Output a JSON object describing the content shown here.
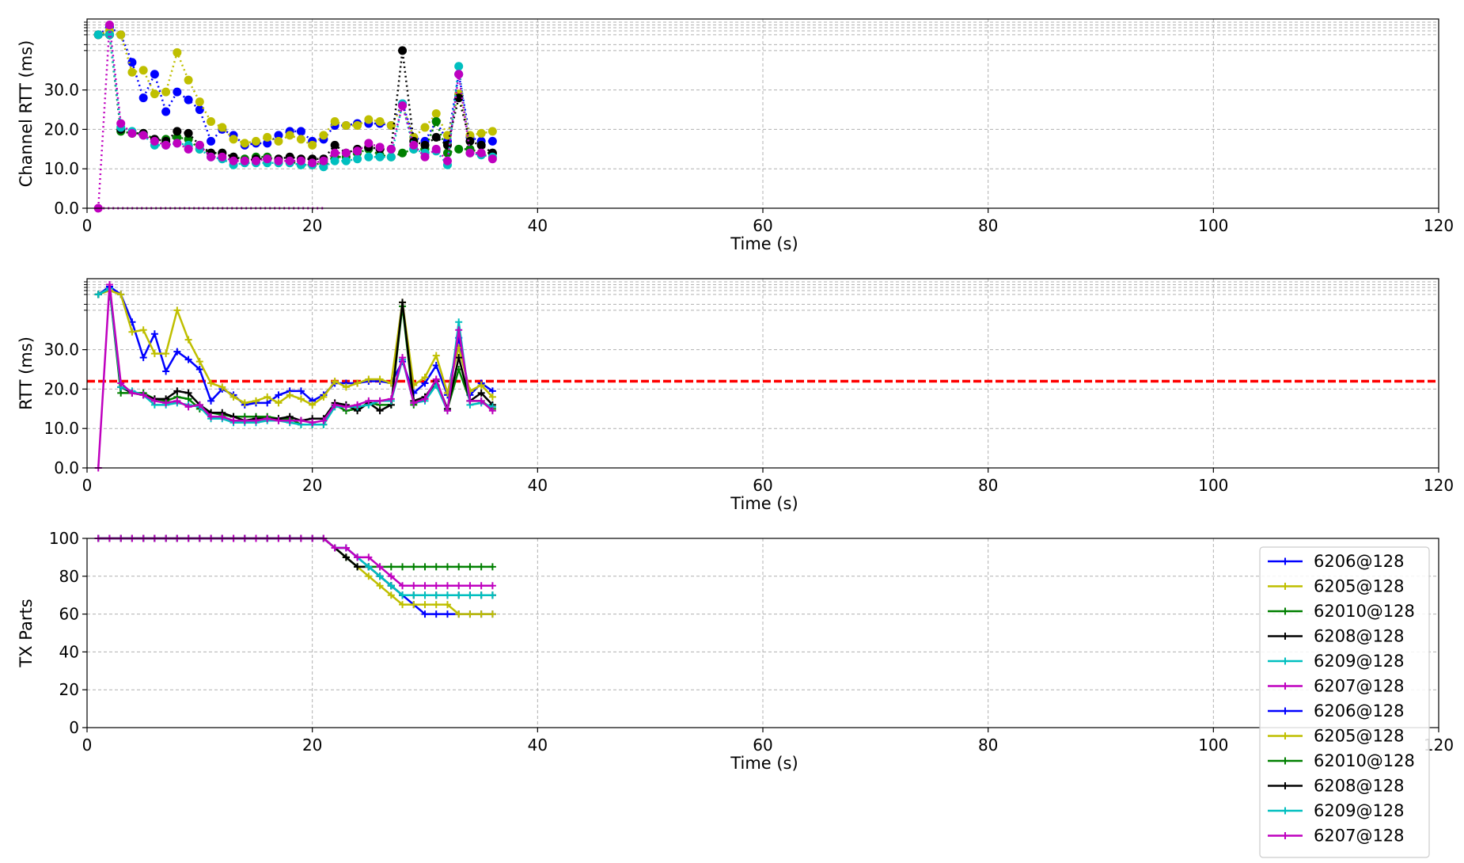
{
  "charts": [
    {
      "id": "channel_rtt",
      "xlabel": "Time (s)",
      "ylabel": "Channel RTT (ms)",
      "xlim": [
        0,
        120
      ],
      "ylim": [
        0,
        48
      ],
      "xticks": [
        "0",
        "20",
        "40",
        "60",
        "80",
        "100",
        "120"
      ],
      "yticks": [
        "0.0",
        "10.0",
        "20.0",
        "30.0"
      ],
      "ytick_values": [
        0,
        10,
        20,
        30
      ],
      "minor_y": [
        40,
        41.5,
        44,
        45,
        45.8,
        46.5,
        47.2
      ],
      "grid": true,
      "line_style": "dotted",
      "marker": "circle"
    },
    {
      "id": "rtt",
      "xlabel": "Time (s)",
      "ylabel": "RTT (ms)",
      "xlim": [
        0,
        120
      ],
      "ylim": [
        0,
        48
      ],
      "xticks": [
        "0",
        "20",
        "40",
        "60",
        "80",
        "100",
        "120"
      ],
      "yticks": [
        "0.0",
        "10.0",
        "20.0",
        "30.0"
      ],
      "ytick_values": [
        0,
        10,
        20,
        30
      ],
      "minor_y": [
        40,
        41.5,
        44,
        45,
        45.8,
        46.5,
        47.2
      ],
      "grid": true,
      "line_style": "solid",
      "marker": "plus",
      "threshold": {
        "y": 22,
        "color": "#ff0000"
      }
    },
    {
      "id": "tx_parts",
      "xlabel": "Time (s)",
      "ylabel": "TX Parts",
      "xlim": [
        0,
        120
      ],
      "ylim": [
        0,
        100
      ],
      "xticks": [
        "0",
        "20",
        "40",
        "60",
        "80",
        "100",
        "120"
      ],
      "yticks": [
        "0",
        "20",
        "40",
        "60",
        "80",
        "100"
      ],
      "ytick_values": [
        0,
        20,
        40,
        60,
        80,
        100
      ],
      "grid": true,
      "line_style": "solid",
      "marker": "plus"
    }
  ],
  "legend": {
    "placement": "right",
    "entries": [
      "6206@128",
      "6205@128",
      "62010@128",
      "6208@128",
      "6209@128",
      "6207@128",
      "6206@128",
      "6205@128",
      "62010@128",
      "6208@128",
      "6209@128",
      "6207@128"
    ],
    "colors": [
      "#0000ff",
      "#bfbf00",
      "#008000",
      "#000000",
      "#00bfbf",
      "#bf00bf",
      "#0000ff",
      "#bfbf00",
      "#008000",
      "#000000",
      "#00bfbf",
      "#bf00bf"
    ]
  },
  "chart_data": [
    {
      "type": "line",
      "xlabel": "Time (s)",
      "ylabel": "Channel RTT (ms)",
      "x": [
        1,
        2,
        3,
        4,
        5,
        6,
        7,
        8,
        9,
        10,
        11,
        12,
        13,
        14,
        15,
        16,
        17,
        18,
        19,
        20,
        21,
        22,
        23,
        24,
        25,
        26,
        27,
        28,
        29,
        30,
        31,
        32,
        33,
        34,
        35,
        36
      ],
      "series": [
        {
          "name": "6206@128",
          "color": "#0000ff",
          "values": [
            44,
            46,
            44,
            37,
            28,
            34,
            24.5,
            29.5,
            27.5,
            25,
            17,
            20,
            18.5,
            16,
            16.5,
            16.5,
            18.5,
            19.5,
            19.5,
            17,
            17.5,
            21,
            21,
            21.5,
            21.5,
            21.5,
            21,
            26.5,
            18,
            17,
            22,
            17,
            34,
            18,
            17,
            17
          ]
        },
        {
          "name": "6205@128",
          "color": "#bfbf00",
          "values": [
            44,
            45,
            44,
            34.5,
            35,
            29,
            29.5,
            39.5,
            32.5,
            27,
            22,
            20.5,
            17.5,
            16.5,
            17,
            18,
            17,
            18.5,
            17.5,
            16,
            18.5,
            22,
            21,
            21,
            22.5,
            22,
            21,
            26,
            18,
            20.5,
            24,
            18.5,
            29,
            18.5,
            19,
            19.5
          ]
        },
        {
          "name": "62010@128",
          "color": "#008000",
          "values": [
            44,
            44,
            19.5,
            19,
            19,
            17.5,
            17.5,
            18,
            17.5,
            15,
            14,
            14,
            13,
            12.5,
            13,
            13,
            12,
            12,
            11,
            11,
            11.5,
            13,
            13,
            14,
            15,
            13.5,
            13,
            14,
            15,
            15,
            22,
            14,
            15,
            15,
            14,
            14
          ]
        },
        {
          "name": "6208@128",
          "color": "#000000",
          "values": [
            44,
            44,
            20,
            19,
            19,
            17.5,
            17,
            19.5,
            19,
            16,
            14,
            14,
            13,
            12,
            12.5,
            12.5,
            12.5,
            13,
            12.5,
            12.5,
            12.5,
            16,
            14,
            15,
            15.5,
            15,
            15,
            40,
            17,
            16,
            18,
            16,
            28,
            17,
            16,
            14
          ]
        },
        {
          "name": "6209@128",
          "color": "#00bfbf",
          "values": [
            44,
            44,
            20.5,
            19.5,
            18.5,
            16,
            16,
            16.5,
            16,
            15,
            13,
            12.5,
            11,
            11.5,
            11.5,
            11.5,
            11.5,
            11.5,
            11,
            11,
            10.5,
            12,
            12,
            12.5,
            13,
            13,
            13,
            26.5,
            15,
            14,
            14.5,
            11,
            36,
            14,
            13.5,
            13
          ]
        },
        {
          "name": "6207@128",
          "color": "#bf00bf",
          "values": [
            0,
            46.5,
            21.5,
            19,
            18.5,
            17,
            16,
            16.5,
            15,
            16,
            13,
            13,
            12,
            12,
            12,
            12.5,
            12,
            12,
            12,
            11.5,
            12,
            14,
            14,
            14.5,
            16.5,
            15.5,
            15,
            26,
            16,
            13,
            15,
            12,
            34,
            14,
            14,
            12.5
          ]
        }
      ],
      "extra_series": [
        {
          "color": "#bf00bf",
          "style": "dotted",
          "x": [
            1,
            21
          ],
          "values": [
            0,
            0
          ]
        }
      ]
    },
    {
      "type": "line",
      "xlabel": "Time (s)",
      "ylabel": "RTT (ms)",
      "x": [
        1,
        2,
        3,
        4,
        5,
        6,
        7,
        8,
        9,
        10,
        11,
        12,
        13,
        14,
        15,
        16,
        17,
        18,
        19,
        20,
        21,
        22,
        23,
        24,
        25,
        26,
        27,
        28,
        29,
        30,
        31,
        32,
        33,
        34,
        35,
        36
      ],
      "series": [
        {
          "name": "6206@128",
          "color": "#0000ff",
          "values": [
            44,
            46,
            44,
            37,
            28,
            34,
            24.5,
            29.5,
            27.5,
            25,
            17,
            20,
            18.5,
            16,
            16.5,
            16.5,
            18.5,
            19.5,
            19.5,
            17,
            18.5,
            21.5,
            21.5,
            21.5,
            22,
            22,
            21.5,
            27,
            19,
            21.5,
            26,
            18.5,
            33,
            18.5,
            21.5,
            19.5
          ]
        },
        {
          "name": "6205@128",
          "color": "#bfbf00",
          "values": [
            44,
            45,
            44,
            34.5,
            35,
            29,
            29,
            40,
            32.5,
            27,
            21.5,
            20.5,
            18,
            16.5,
            17,
            18,
            16.5,
            18.5,
            17.5,
            16,
            18,
            22,
            20.5,
            21.5,
            22.5,
            22.5,
            21.5,
            42,
            21,
            23,
            28.5,
            19,
            30.5,
            19.5,
            21,
            18
          ]
        },
        {
          "name": "62010@128",
          "color": "#008000",
          "values": [
            44,
            45.5,
            19,
            19,
            19,
            17.5,
            17,
            18,
            17.5,
            15,
            14,
            13.5,
            13,
            13,
            13,
            13,
            12.5,
            12.5,
            11,
            11,
            11,
            16,
            14.5,
            15,
            16.5,
            16,
            16,
            41,
            16,
            18,
            21,
            15,
            25,
            17,
            17,
            15
          ]
        },
        {
          "name": "6208@128",
          "color": "#000000",
          "values": [
            44,
            45.5,
            20.5,
            19,
            18.5,
            17.5,
            17.5,
            19.5,
            19,
            16,
            14,
            14,
            13,
            12,
            12.5,
            12.5,
            12.5,
            13,
            12,
            12.5,
            12.5,
            16.5,
            16,
            14.5,
            16.5,
            14.5,
            16,
            42,
            17,
            18,
            22,
            15,
            28,
            17,
            19,
            16
          ]
        },
        {
          "name": "6209@128",
          "color": "#00bfbf",
          "values": [
            44,
            45.5,
            20.5,
            19.5,
            18.5,
            16,
            16,
            16.5,
            16,
            15.5,
            12.5,
            12.5,
            11.5,
            11.5,
            11.5,
            12,
            12,
            11.5,
            11,
            11,
            11,
            15.5,
            15.5,
            15.5,
            16,
            17,
            17,
            27.5,
            16.5,
            17,
            21,
            14.5,
            37,
            16,
            16.5,
            15.5
          ]
        },
        {
          "name": "6207@128",
          "color": "#bf00bf",
          "values": [
            0,
            46.5,
            21.5,
            19,
            18.5,
            17,
            16.5,
            17,
            15.5,
            16,
            13,
            13,
            12,
            12,
            12,
            12.5,
            12,
            12,
            12,
            11.5,
            12,
            16,
            15.5,
            16,
            17,
            17,
            17.5,
            28,
            16.5,
            17.5,
            22.5,
            14.5,
            35,
            17,
            17,
            14.5
          ]
        }
      ]
    },
    {
      "type": "line",
      "xlabel": "Time (s)",
      "ylabel": "TX Parts",
      "x": [
        1,
        2,
        3,
        4,
        5,
        6,
        7,
        8,
        9,
        10,
        11,
        12,
        13,
        14,
        15,
        16,
        17,
        18,
        19,
        20,
        21,
        22,
        23,
        24,
        25,
        26,
        27,
        28,
        29,
        30,
        31,
        32,
        33,
        34,
        35,
        36
      ],
      "series": [
        {
          "name": "6206@128",
          "color": "#0000ff",
          "values": [
            100,
            100,
            100,
            100,
            100,
            100,
            100,
            100,
            100,
            100,
            100,
            100,
            100,
            100,
            100,
            100,
            100,
            100,
            100,
            100,
            100,
            95,
            95,
            90,
            85,
            80,
            75,
            70,
            65,
            60,
            60,
            60,
            60,
            60,
            60,
            60
          ]
        },
        {
          "name": "6205@128",
          "color": "#bfbf00",
          "values": [
            100,
            100,
            100,
            100,
            100,
            100,
            100,
            100,
            100,
            100,
            100,
            100,
            100,
            100,
            100,
            100,
            100,
            100,
            100,
            100,
            100,
            95,
            90,
            85,
            80,
            75,
            70,
            65,
            65,
            65,
            65,
            65,
            60,
            60,
            60,
            60
          ]
        },
        {
          "name": "62010@128",
          "color": "#008000",
          "values": [
            100,
            100,
            100,
            100,
            100,
            100,
            100,
            100,
            100,
            100,
            100,
            100,
            100,
            100,
            100,
            100,
            100,
            100,
            100,
            100,
            100,
            95,
            90,
            85,
            85,
            85,
            85,
            85,
            85,
            85,
            85,
            85,
            85,
            85,
            85,
            85
          ]
        },
        {
          "name": "6208@128",
          "color": "#000000",
          "values": [
            100,
            100,
            100,
            100,
            100,
            100,
            100,
            100,
            100,
            100,
            100,
            100,
            100,
            100,
            100,
            100,
            100,
            100,
            100,
            100,
            100,
            95,
            90,
            85,
            85,
            80,
            75,
            70,
            70,
            70,
            70,
            70,
            70,
            70,
            70,
            70
          ]
        },
        {
          "name": "6209@128",
          "color": "#00bfbf",
          "values": [
            100,
            100,
            100,
            100,
            100,
            100,
            100,
            100,
            100,
            100,
            100,
            100,
            100,
            100,
            100,
            100,
            100,
            100,
            100,
            100,
            100,
            95,
            95,
            90,
            85,
            80,
            75,
            70,
            70,
            70,
            70,
            70,
            70,
            70,
            70,
            70
          ]
        },
        {
          "name": "6207@128",
          "color": "#bf00bf",
          "values": [
            100,
            100,
            100,
            100,
            100,
            100,
            100,
            100,
            100,
            100,
            100,
            100,
            100,
            100,
            100,
            100,
            100,
            100,
            100,
            100,
            100,
            95,
            95,
            90,
            90,
            85,
            80,
            75,
            75,
            75,
            75,
            75,
            75,
            75,
            75,
            75
          ]
        }
      ],
      "extra_series": [
        {
          "color": "#bf00bf",
          "style": "dotted",
          "x": [
            1,
            21
          ],
          "values": [
            100,
            100
          ]
        }
      ]
    }
  ]
}
